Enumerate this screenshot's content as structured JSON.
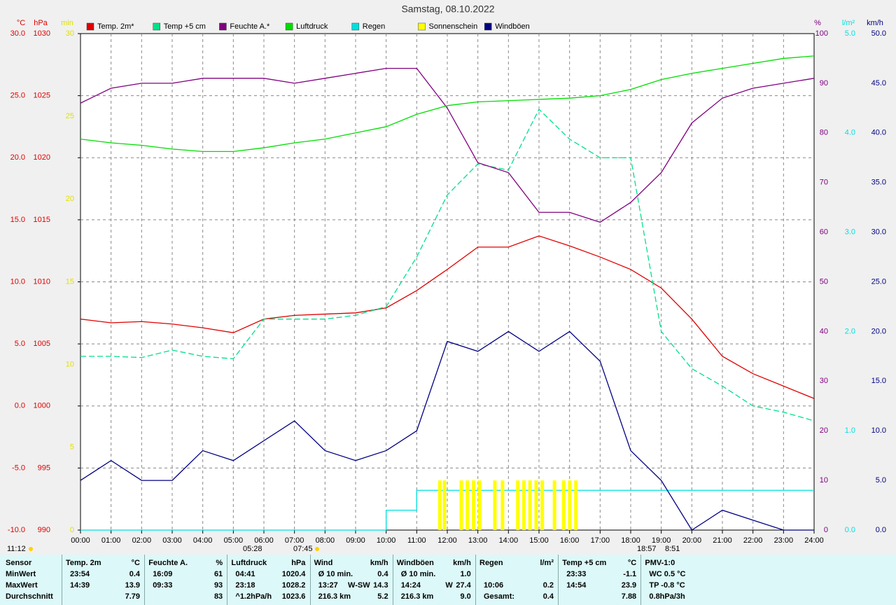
{
  "chart_data": {
    "type": "line",
    "title": "Samstag, 08.10.2022",
    "x": [
      0,
      1,
      2,
      3,
      4,
      5,
      6,
      7,
      8,
      9,
      10,
      11,
      12,
      13,
      14,
      15,
      16,
      17,
      18,
      19,
      20,
      21,
      22,
      23,
      24
    ],
    "xlim": [
      0,
      24
    ],
    "xticks": [
      {
        "value": 0,
        "label": "00:00"
      },
      {
        "value": 1,
        "label": "01:00"
      },
      {
        "value": 2,
        "label": "02:00"
      },
      {
        "value": 3,
        "label": "03:00"
      },
      {
        "value": 4,
        "label": "04:00"
      },
      {
        "value": 5,
        "label": "05:00"
      },
      {
        "value": 6,
        "label": "06:00"
      },
      {
        "value": 7,
        "label": "07:00"
      },
      {
        "value": 8,
        "label": "08:00"
      },
      {
        "value": 9,
        "label": "09:00"
      },
      {
        "value": 10,
        "label": "10:00"
      },
      {
        "value": 11,
        "label": "11:00"
      },
      {
        "value": 12,
        "label": "12:00"
      },
      {
        "value": 13,
        "label": "13:00"
      },
      {
        "value": 14,
        "label": "14:00"
      },
      {
        "value": 15,
        "label": "15:00"
      },
      {
        "value": 16,
        "label": "16:00"
      },
      {
        "value": 17,
        "label": "17:00"
      },
      {
        "value": 18,
        "label": "18:00"
      },
      {
        "value": 19,
        "label": "19:00"
      },
      {
        "value": 20,
        "label": "20:00"
      },
      {
        "value": 21,
        "label": "21:00"
      },
      {
        "value": 22,
        "label": "22:00"
      },
      {
        "value": 23,
        "label": "23:00"
      },
      {
        "value": 24,
        "label": "24:00"
      }
    ],
    "grid": true,
    "axes": [
      {
        "label": "°C",
        "color": "#e00000",
        "lim": [
          -10,
          30
        ],
        "ticks": [
          {
            "value": 30,
            "label": "30.0"
          },
          {
            "value": 25,
            "label": "25.0"
          },
          {
            "value": 20,
            "label": "20.0"
          },
          {
            "value": 15,
            "label": "15.0"
          },
          {
            "value": 10,
            "label": "10.0"
          },
          {
            "value": 5,
            "label": "5.0"
          },
          {
            "value": 0,
            "label": "0.0"
          },
          {
            "value": -5,
            "label": "-5.0"
          },
          {
            "value": -10,
            "label": "-10.0"
          }
        ]
      },
      {
        "label": "hPa",
        "color": "#e00000",
        "lim": [
          990,
          1030
        ],
        "ticks": [
          1030,
          1025,
          1020,
          1015,
          1010,
          1005,
          1000,
          995,
          990
        ]
      },
      {
        "label": "min",
        "color": "#e0e000",
        "lim": [
          0,
          30
        ],
        "ticks": [
          30,
          25,
          20,
          15,
          10,
          5,
          0
        ]
      },
      {
        "label": "%",
        "color": "#800080",
        "lim": [
          0,
          100
        ],
        "ticks": [
          100,
          90,
          80,
          70,
          60,
          50,
          40,
          30,
          20,
          10,
          0
        ]
      },
      {
        "label": "l/m²",
        "color": "#00e0e0",
        "lim": [
          0,
          5
        ],
        "ticks": [
          {
            "value": 5,
            "label": "5.0"
          },
          {
            "value": 4,
            "label": "4.0"
          },
          {
            "value": 3,
            "label": "3.0"
          },
          {
            "value": 2,
            "label": "2.0"
          },
          {
            "value": 1,
            "label": "1.0"
          },
          {
            "value": 0,
            "label": "0.0"
          }
        ]
      },
      {
        "label": "km/h",
        "color": "#000080",
        "lim": [
          0,
          50
        ],
        "ticks": [
          {
            "value": 50,
            "label": "50.0"
          },
          {
            "value": 45,
            "label": "45.0"
          },
          {
            "value": 40,
            "label": "40.0"
          },
          {
            "value": 35,
            "label": "35.0"
          },
          {
            "value": 30,
            "label": "30.0"
          },
          {
            "value": 25,
            "label": "25.0"
          },
          {
            "value": 20,
            "label": "20.0"
          },
          {
            "value": 15,
            "label": "15.0"
          },
          {
            "value": 10,
            "label": "10.0"
          },
          {
            "value": 5,
            "label": "5.0"
          },
          {
            "value": 0,
            "label": "0.0"
          }
        ]
      }
    ],
    "series": [
      {
        "name": "Temp. 2m*",
        "color": "#e00000",
        "axis": 0,
        "values": [
          7.0,
          6.7,
          6.8,
          6.6,
          6.3,
          5.9,
          7.0,
          7.3,
          7.4,
          7.5,
          7.9,
          9.3,
          11.0,
          12.8,
          12.8,
          13.7,
          12.9,
          12.0,
          11.0,
          9.5,
          7.0,
          4.0,
          2.6,
          1.6,
          0.6
        ]
      },
      {
        "name": "Temp +5 cm",
        "color": "#00e08a",
        "axis": 0,
        "dashed": true,
        "values": [
          4.0,
          4.0,
          3.9,
          4.5,
          4.0,
          3.8,
          7.0,
          7.0,
          7.0,
          7.3,
          8.0,
          12.0,
          17.0,
          19.5,
          19.0,
          23.9,
          21.5,
          20.0,
          20.0,
          6.0,
          3.0,
          1.6,
          0.0,
          -0.5,
          -1.2
        ]
      },
      {
        "name": "Feuchte A.*",
        "color": "#800080",
        "axis": 3,
        "values": [
          86,
          89,
          90,
          90,
          91,
          91,
          91,
          90,
          91,
          92,
          93,
          93,
          85,
          74,
          72,
          64,
          64,
          62,
          66,
          72,
          82,
          87,
          89,
          90,
          91
        ]
      },
      {
        "name": "Luftdruck",
        "color": "#00dd00",
        "axis": 1,
        "values": [
          1021.5,
          1021.2,
          1021.0,
          1020.7,
          1020.5,
          1020.5,
          1020.8,
          1021.2,
          1021.5,
          1022.0,
          1022.5,
          1023.5,
          1024.2,
          1024.5,
          1024.6,
          1024.7,
          1024.8,
          1025.0,
          1025.5,
          1026.3,
          1026.8,
          1027.2,
          1027.6,
          1028.0,
          1028.2
        ]
      },
      {
        "name": "Regen",
        "color": "#00e0e0",
        "axis": 4,
        "step": true,
        "values": [
          0,
          0,
          0,
          0,
          0,
          0,
          0,
          0,
          0,
          0,
          0.2,
          0.4,
          0.4,
          0.4,
          0.4,
          0.4,
          0.4,
          0.4,
          0.4,
          0.4,
          0.4,
          0.4,
          0.4,
          0.4,
          0.4
        ]
      },
      {
        "name": "Sonnenschein",
        "color": "#ffff00",
        "axis": 2,
        "kind": "bar",
        "x": [
          11.7,
          11.85,
          12.4,
          12.6,
          12.8,
          13.0,
          13.5,
          13.75,
          14.25,
          14.45,
          14.65,
          14.85,
          15.05,
          15.45,
          15.75,
          15.95,
          16.15
        ],
        "values": [
          3,
          3,
          3,
          3,
          3,
          3,
          3,
          3,
          3,
          3,
          3,
          3,
          3,
          3,
          3,
          3,
          3
        ]
      },
      {
        "name": "Windböen",
        "color": "#000080",
        "axis": 5,
        "values": [
          5,
          7,
          5,
          5,
          8,
          7,
          9,
          11,
          8,
          7,
          8,
          10,
          19,
          18,
          20,
          18,
          20,
          17,
          8,
          5,
          0,
          2,
          1,
          0,
          0
        ]
      }
    ],
    "annotations": [
      "11:12",
      "05:28",
      "07:45",
      "18:57",
      "8:51"
    ]
  },
  "stats_table": {
    "row_labels": [
      "Sensor",
      "MinWert",
      "MaxWert",
      "Durchschnitt"
    ],
    "groups": [
      {
        "name": "Temp. 2m",
        "unit": "°C",
        "min": {
          "time": "23:54",
          "value": "0.4"
        },
        "max": {
          "time": "14:39",
          "value": "13.9"
        },
        "avg": {
          "value": "7.79"
        }
      },
      {
        "name": "Feuchte A.",
        "unit": "%",
        "min": {
          "time": "16:09",
          "value": "61"
        },
        "max": {
          "time": "09:33",
          "value": "93"
        },
        "avg": {
          "value": "83"
        }
      },
      {
        "name": "Luftdruck",
        "unit": "hPa",
        "min": {
          "time": "04:41",
          "value": "1020.4"
        },
        "max": {
          "time": "23:18",
          "value": "1028.2"
        },
        "avg": {
          "time": "^1.2hPa/h",
          "value": "1023.6"
        }
      },
      {
        "name": "Wind",
        "unit": "km/h",
        "min": {
          "time": "Ø 10 min.",
          "value": "0.4"
        },
        "max": {
          "time": "13:27",
          "dir": "W-SW",
          "value": "14.3"
        },
        "avg": {
          "time": "216.3 km",
          "value": "5.2"
        }
      },
      {
        "name": "Windböen",
        "unit": "km/h",
        "min": {
          "time": "Ø 10 min.",
          "value": "1.0"
        },
        "max": {
          "time": "14:24",
          "dir": "W",
          "value": "27.4"
        },
        "avg": {
          "time": "216.3 km",
          "value": "9.0"
        }
      },
      {
        "name": "Regen",
        "unit": "l/m²",
        "max": {
          "time": "10:06",
          "value": "0.2"
        },
        "avg": {
          "time": "Gesamt:",
          "value": "0.4"
        }
      },
      {
        "name": "Temp +5 cm",
        "unit": "°C",
        "min": {
          "time": "23:33",
          "value": "-1.1"
        },
        "max": {
          "time": "14:54",
          "value": "23.9"
        },
        "avg": {
          "value": "7.88"
        }
      },
      {
        "name": "PMV-1:0",
        "min": {
          "time": "WC 0.5 °C"
        },
        "max": {
          "time": "TP -0.8 °C"
        },
        "avg": {
          "time": "0.8hPa/3h"
        }
      }
    ]
  }
}
